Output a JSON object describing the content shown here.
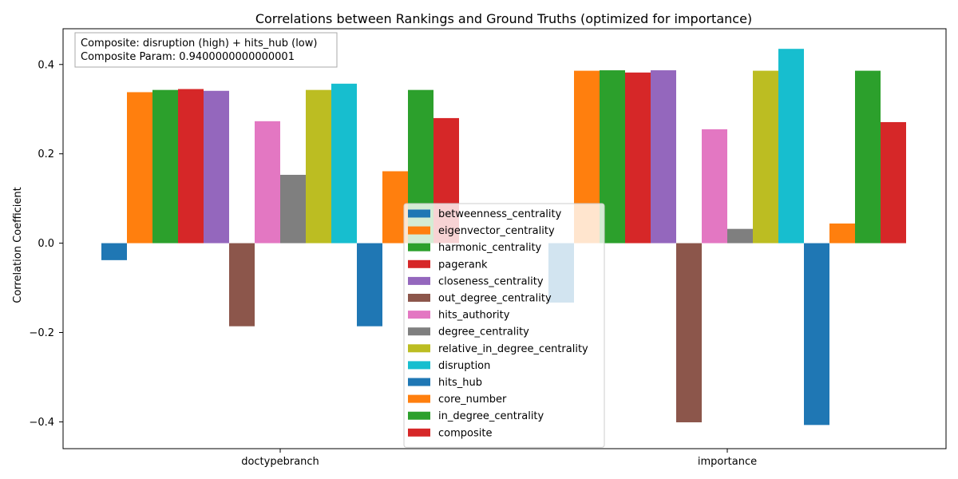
{
  "chart_data": {
    "type": "bar",
    "title": "Correlations between Rankings and Ground Truths (optimized for importance)",
    "xlabel": "",
    "ylabel": "Correlation Coefficient",
    "categories": [
      "doctypebranch",
      "importance"
    ],
    "ylim": [
      -0.46,
      0.48
    ],
    "yticks": [
      -0.4,
      -0.2,
      0.0,
      0.2,
      0.4
    ],
    "ytick_labels": [
      "−0.4",
      "−0.2",
      "0.0",
      "0.2",
      "0.4"
    ],
    "grid": false,
    "legend_position": "bottom-center",
    "annotation": {
      "line1": "Composite: disruption (high) + hits_hub (low)",
      "line2": "Composite Param: 0.9400000000000001"
    },
    "series": [
      {
        "name": "betweenness_centrality",
        "color": "#1f77b4",
        "values": [
          -0.038,
          -0.133
        ]
      },
      {
        "name": "eigenvector_centrality",
        "color": "#ff7f0e",
        "values": [
          0.338,
          0.386
        ]
      },
      {
        "name": "harmonic_centrality",
        "color": "#2ca02c",
        "values": [
          0.343,
          0.387
        ]
      },
      {
        "name": "pagerank",
        "color": "#d62728",
        "values": [
          0.345,
          0.382
        ]
      },
      {
        "name": "closeness_centrality",
        "color": "#9467bd",
        "values": [
          0.341,
          0.387
        ]
      },
      {
        "name": "out_degree_centrality",
        "color": "#8c564b",
        "values": [
          -0.186,
          -0.401
        ]
      },
      {
        "name": "hits_authority",
        "color": "#e377c2",
        "values": [
          0.273,
          0.255
        ]
      },
      {
        "name": "degree_centrality",
        "color": "#7f7f7f",
        "values": [
          0.153,
          0.032
        ]
      },
      {
        "name": "relative_in_degree_centrality",
        "color": "#bcbd22",
        "values": [
          0.343,
          0.386
        ]
      },
      {
        "name": "disruption",
        "color": "#17becf",
        "values": [
          0.357,
          0.435
        ]
      },
      {
        "name": "hits_hub",
        "color": "#1f77b4",
        "values": [
          -0.186,
          -0.407
        ]
      },
      {
        "name": "core_number",
        "color": "#ff7f0e",
        "values": [
          0.161,
          0.044
        ]
      },
      {
        "name": "in_degree_centrality",
        "color": "#2ca02c",
        "values": [
          0.343,
          0.386
        ]
      },
      {
        "name": "composite",
        "color": "#d62728",
        "values": [
          0.28,
          0.271
        ]
      }
    ]
  }
}
